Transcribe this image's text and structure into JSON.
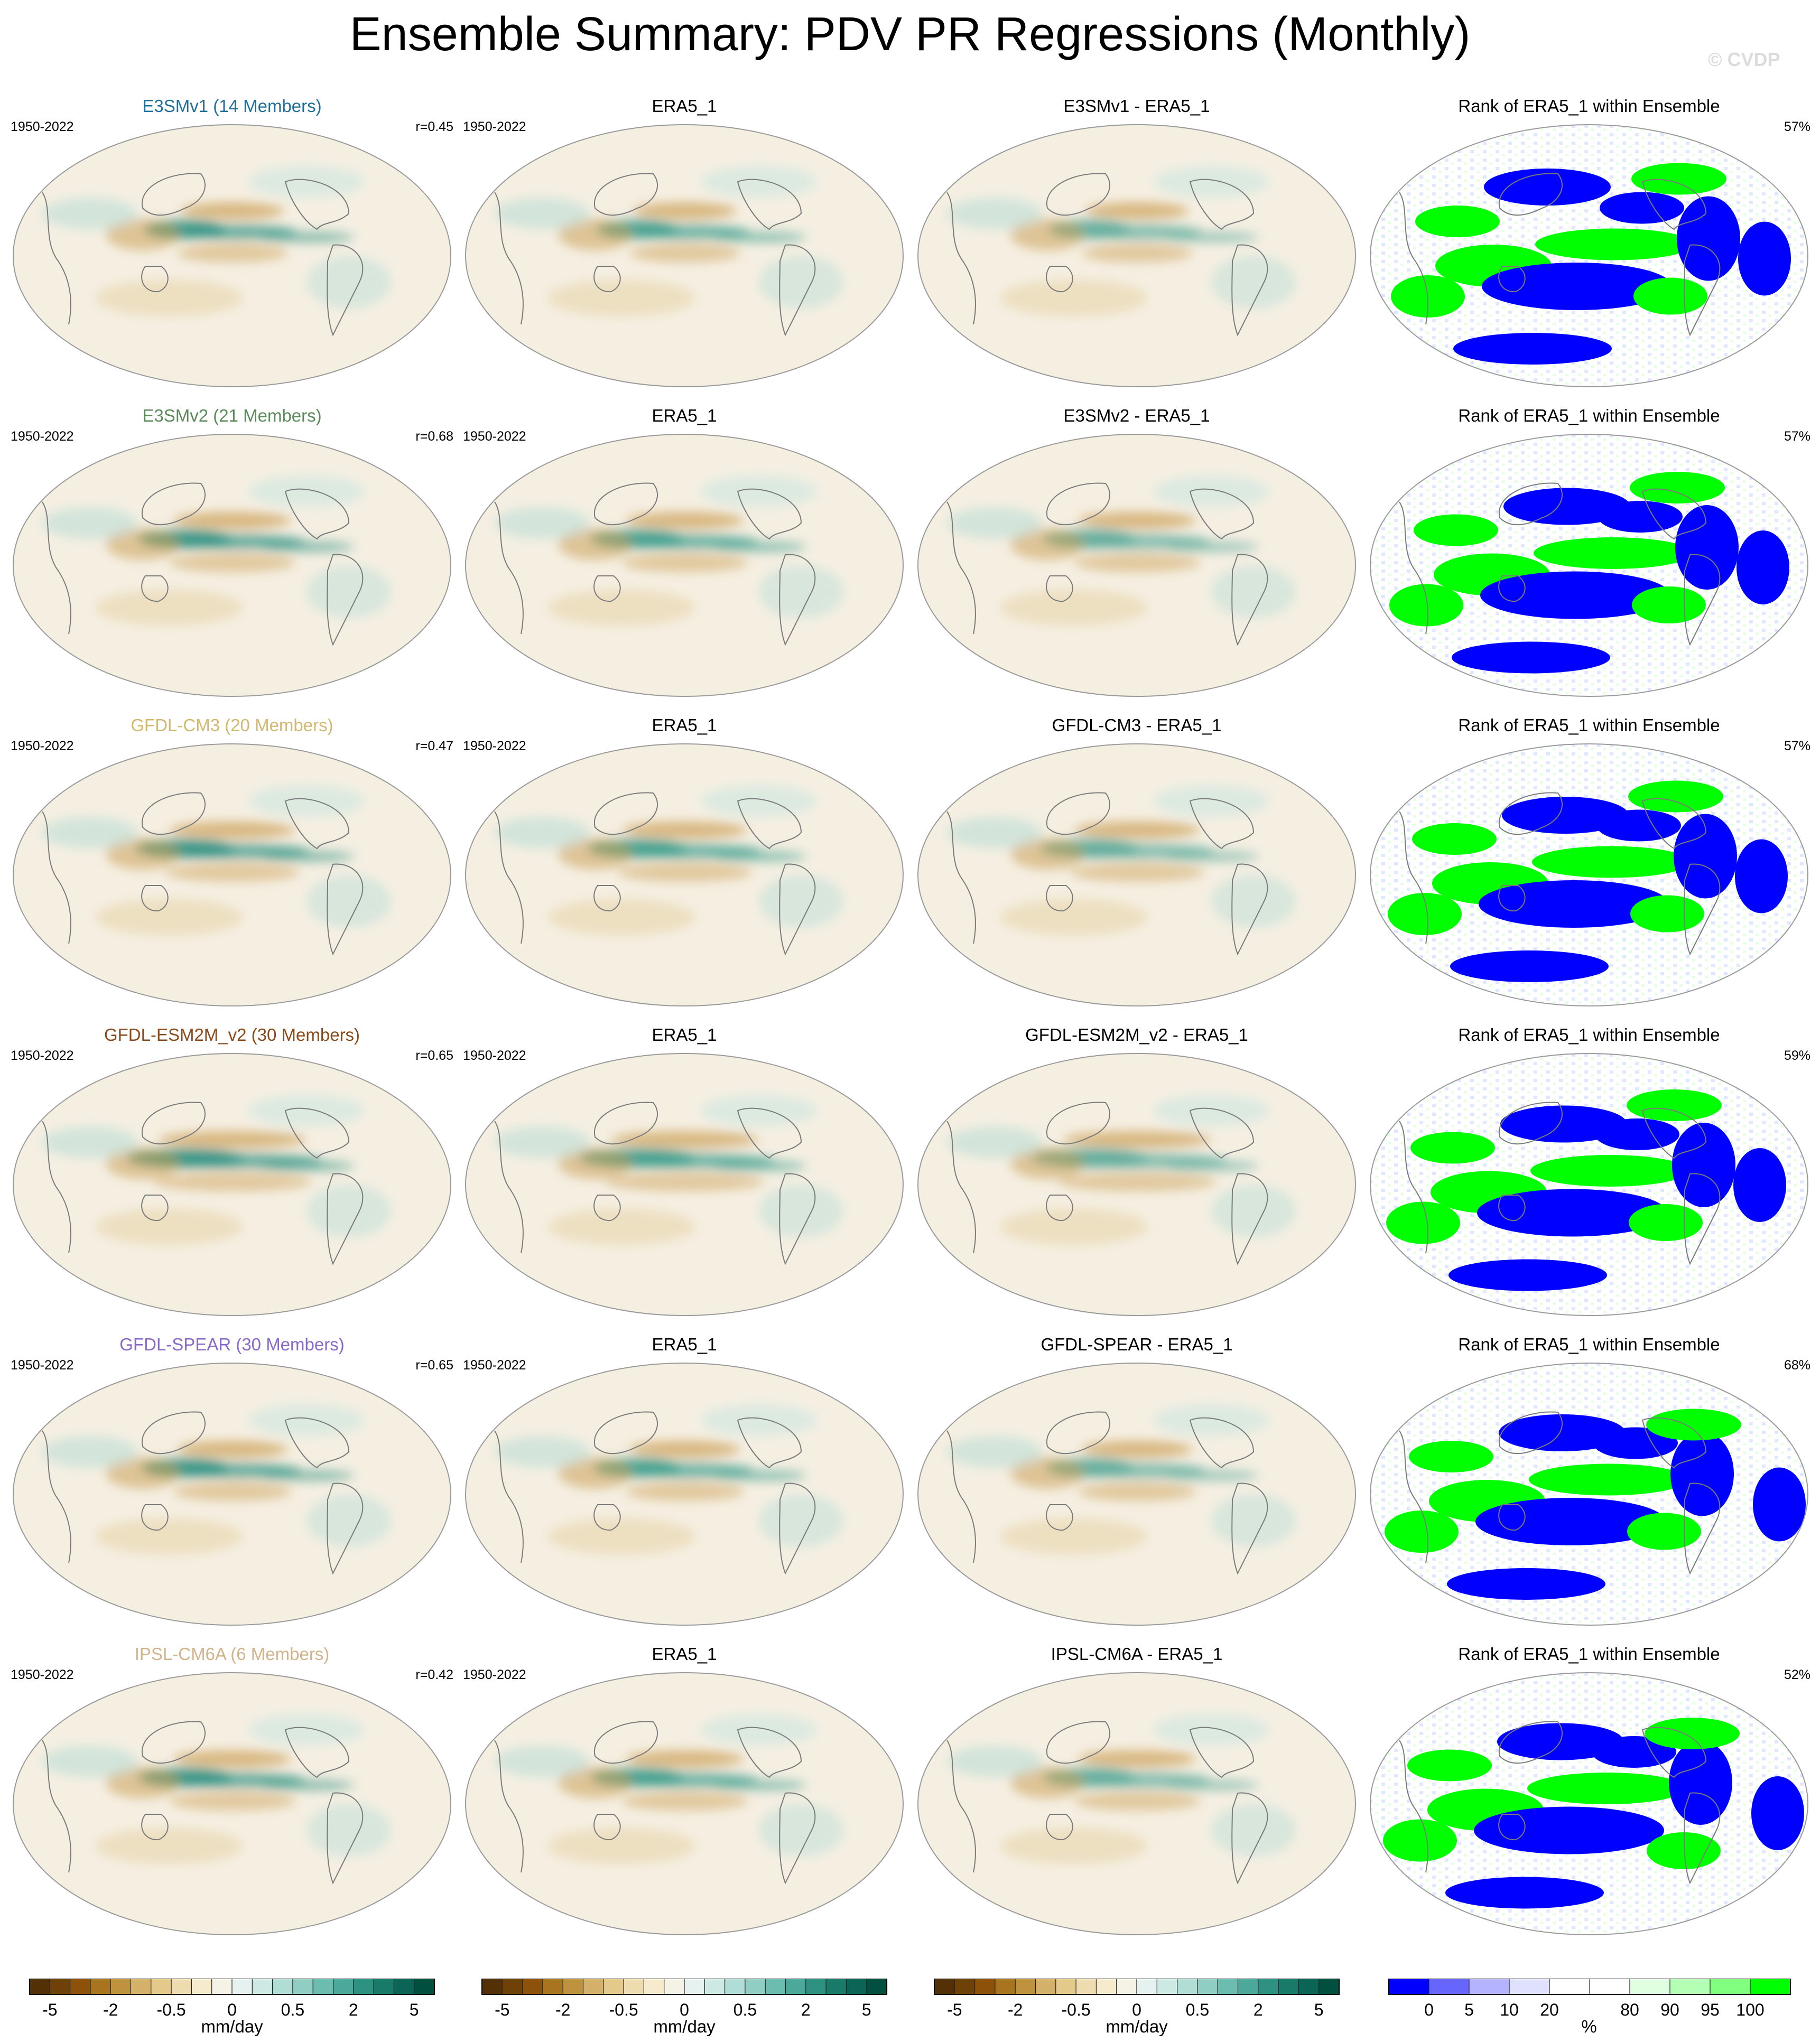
{
  "title": "Ensemble Summary: PDV PR Regressions (Monthly)",
  "watermark": "© CVDP",
  "year_range": "1950-2022",
  "obs_title": "ERA5_1",
  "rank_title": "Rank of ERA5_1 within Ensemble",
  "rows": [
    {
      "model_title": "E3SMv1 (14 Members)",
      "model_color": "#1f6f9a",
      "r": "r=0.45",
      "diff_title": "E3SMv1 - ERA5_1",
      "rank_pct": "57%",
      "strength": 0.7
    },
    {
      "model_title": "E3SMv2 (21 Members)",
      "model_color": "#5a8a5a",
      "r": "r=0.68",
      "diff_title": "E3SMv2 - ERA5_1",
      "rank_pct": "57%",
      "strength": 0.8
    },
    {
      "model_title": "GFDL-CM3 (20 Members)",
      "model_color": "#d2b96e",
      "r": "r=0.47",
      "diff_title": "GFDL-CM3 - ERA5_1",
      "rank_pct": "57%",
      "strength": 0.85
    },
    {
      "model_title": "GFDL-ESM2M_v2 (30 Members)",
      "model_color": "#8a4a1a",
      "r": "r=0.65",
      "diff_title": "GFDL-ESM2M_v2 - ERA5_1",
      "rank_pct": "59%",
      "strength": 1.0
    },
    {
      "model_title": "GFDL-SPEAR (30 Members)",
      "model_color": "#8a6ac8",
      "r": "r=0.65",
      "diff_title": "GFDL-SPEAR - ERA5_1",
      "rank_pct": "68%",
      "strength": 0.75
    },
    {
      "model_title": "IPSL-CM6A (6 Members)",
      "model_color": "#d2b48c",
      "r": "r=0.42",
      "diff_title": "IPSL-CM6A - ERA5_1",
      "rank_pct": "52%",
      "strength": 0.8
    }
  ],
  "colorbar_main": {
    "colors": [
      "#543005",
      "#704009",
      "#8c510a",
      "#a8741f",
      "#bf9240",
      "#d4b06a",
      "#e3c98a",
      "#efdcae",
      "#f6ebcc",
      "#f5f2e6",
      "#e6f2ef",
      "#cde9e4",
      "#b0ddd5",
      "#8fcfc3",
      "#6cbdaf",
      "#4ba89a",
      "#2f9181",
      "#1a7a69",
      "#0b6455",
      "#01503f"
    ],
    "labels": [
      "-5",
      "-2",
      "-0.5",
      "0",
      "0.5",
      "2",
      "5"
    ],
    "unit": "mm/day"
  },
  "colorbar_rank": {
    "colors": [
      "#0000ff",
      "#6666ff",
      "#b3b3ff",
      "#e0e0ff",
      "#ffffff",
      "#ffffff",
      "#e0ffe0",
      "#b3ffb3",
      "#80ff80",
      "#00ff00"
    ],
    "labels": [
      "0",
      "5",
      "10",
      "20",
      "80",
      "90",
      "95",
      "100"
    ],
    "unit": "%"
  }
}
